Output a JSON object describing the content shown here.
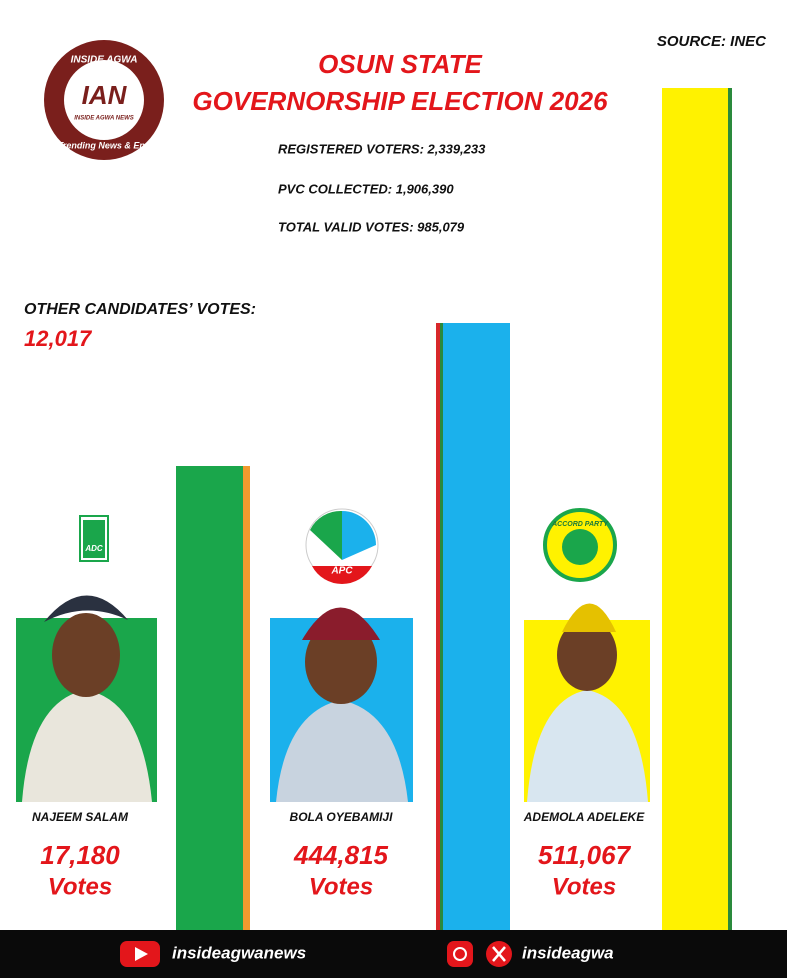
{
  "header": {
    "logo": {
      "top": "INSIDE AGWA",
      "mark": "IAN",
      "sub": "INSIDE AGWA NEWS",
      "tagline": "Trending News & Ent."
    },
    "title_line1": "OSUN STATE",
    "title_line2": "GOVERNORSHIP ELECTION 2026",
    "source": "SOURCE: INEC"
  },
  "stats": [
    "REGISTERED VOTERS: 2,339,233",
    "PVC COLLECTED: 1,906,390",
    "TOTAL VALID VOTES: 985,079"
  ],
  "other_candidates": {
    "label": "OTHER CANDIDATES’ VOTES:",
    "value": "12,017"
  },
  "candidates": [
    {
      "party": "ADC",
      "name": "NAJEEM SALAM",
      "votes": "17,180",
      "unit": "Votes"
    },
    {
      "party": "APC",
      "name": "BOLA OYEBAMIJI",
      "votes": "444,815",
      "unit": "Votes"
    },
    {
      "party": "ACCORD PARTY",
      "name": "ADEMOLA ADELEKE",
      "votes": "511,067",
      "unit": "Votes"
    }
  ],
  "footer": {
    "youtube": "insideagwanews",
    "social": "insideagwa"
  }
}
